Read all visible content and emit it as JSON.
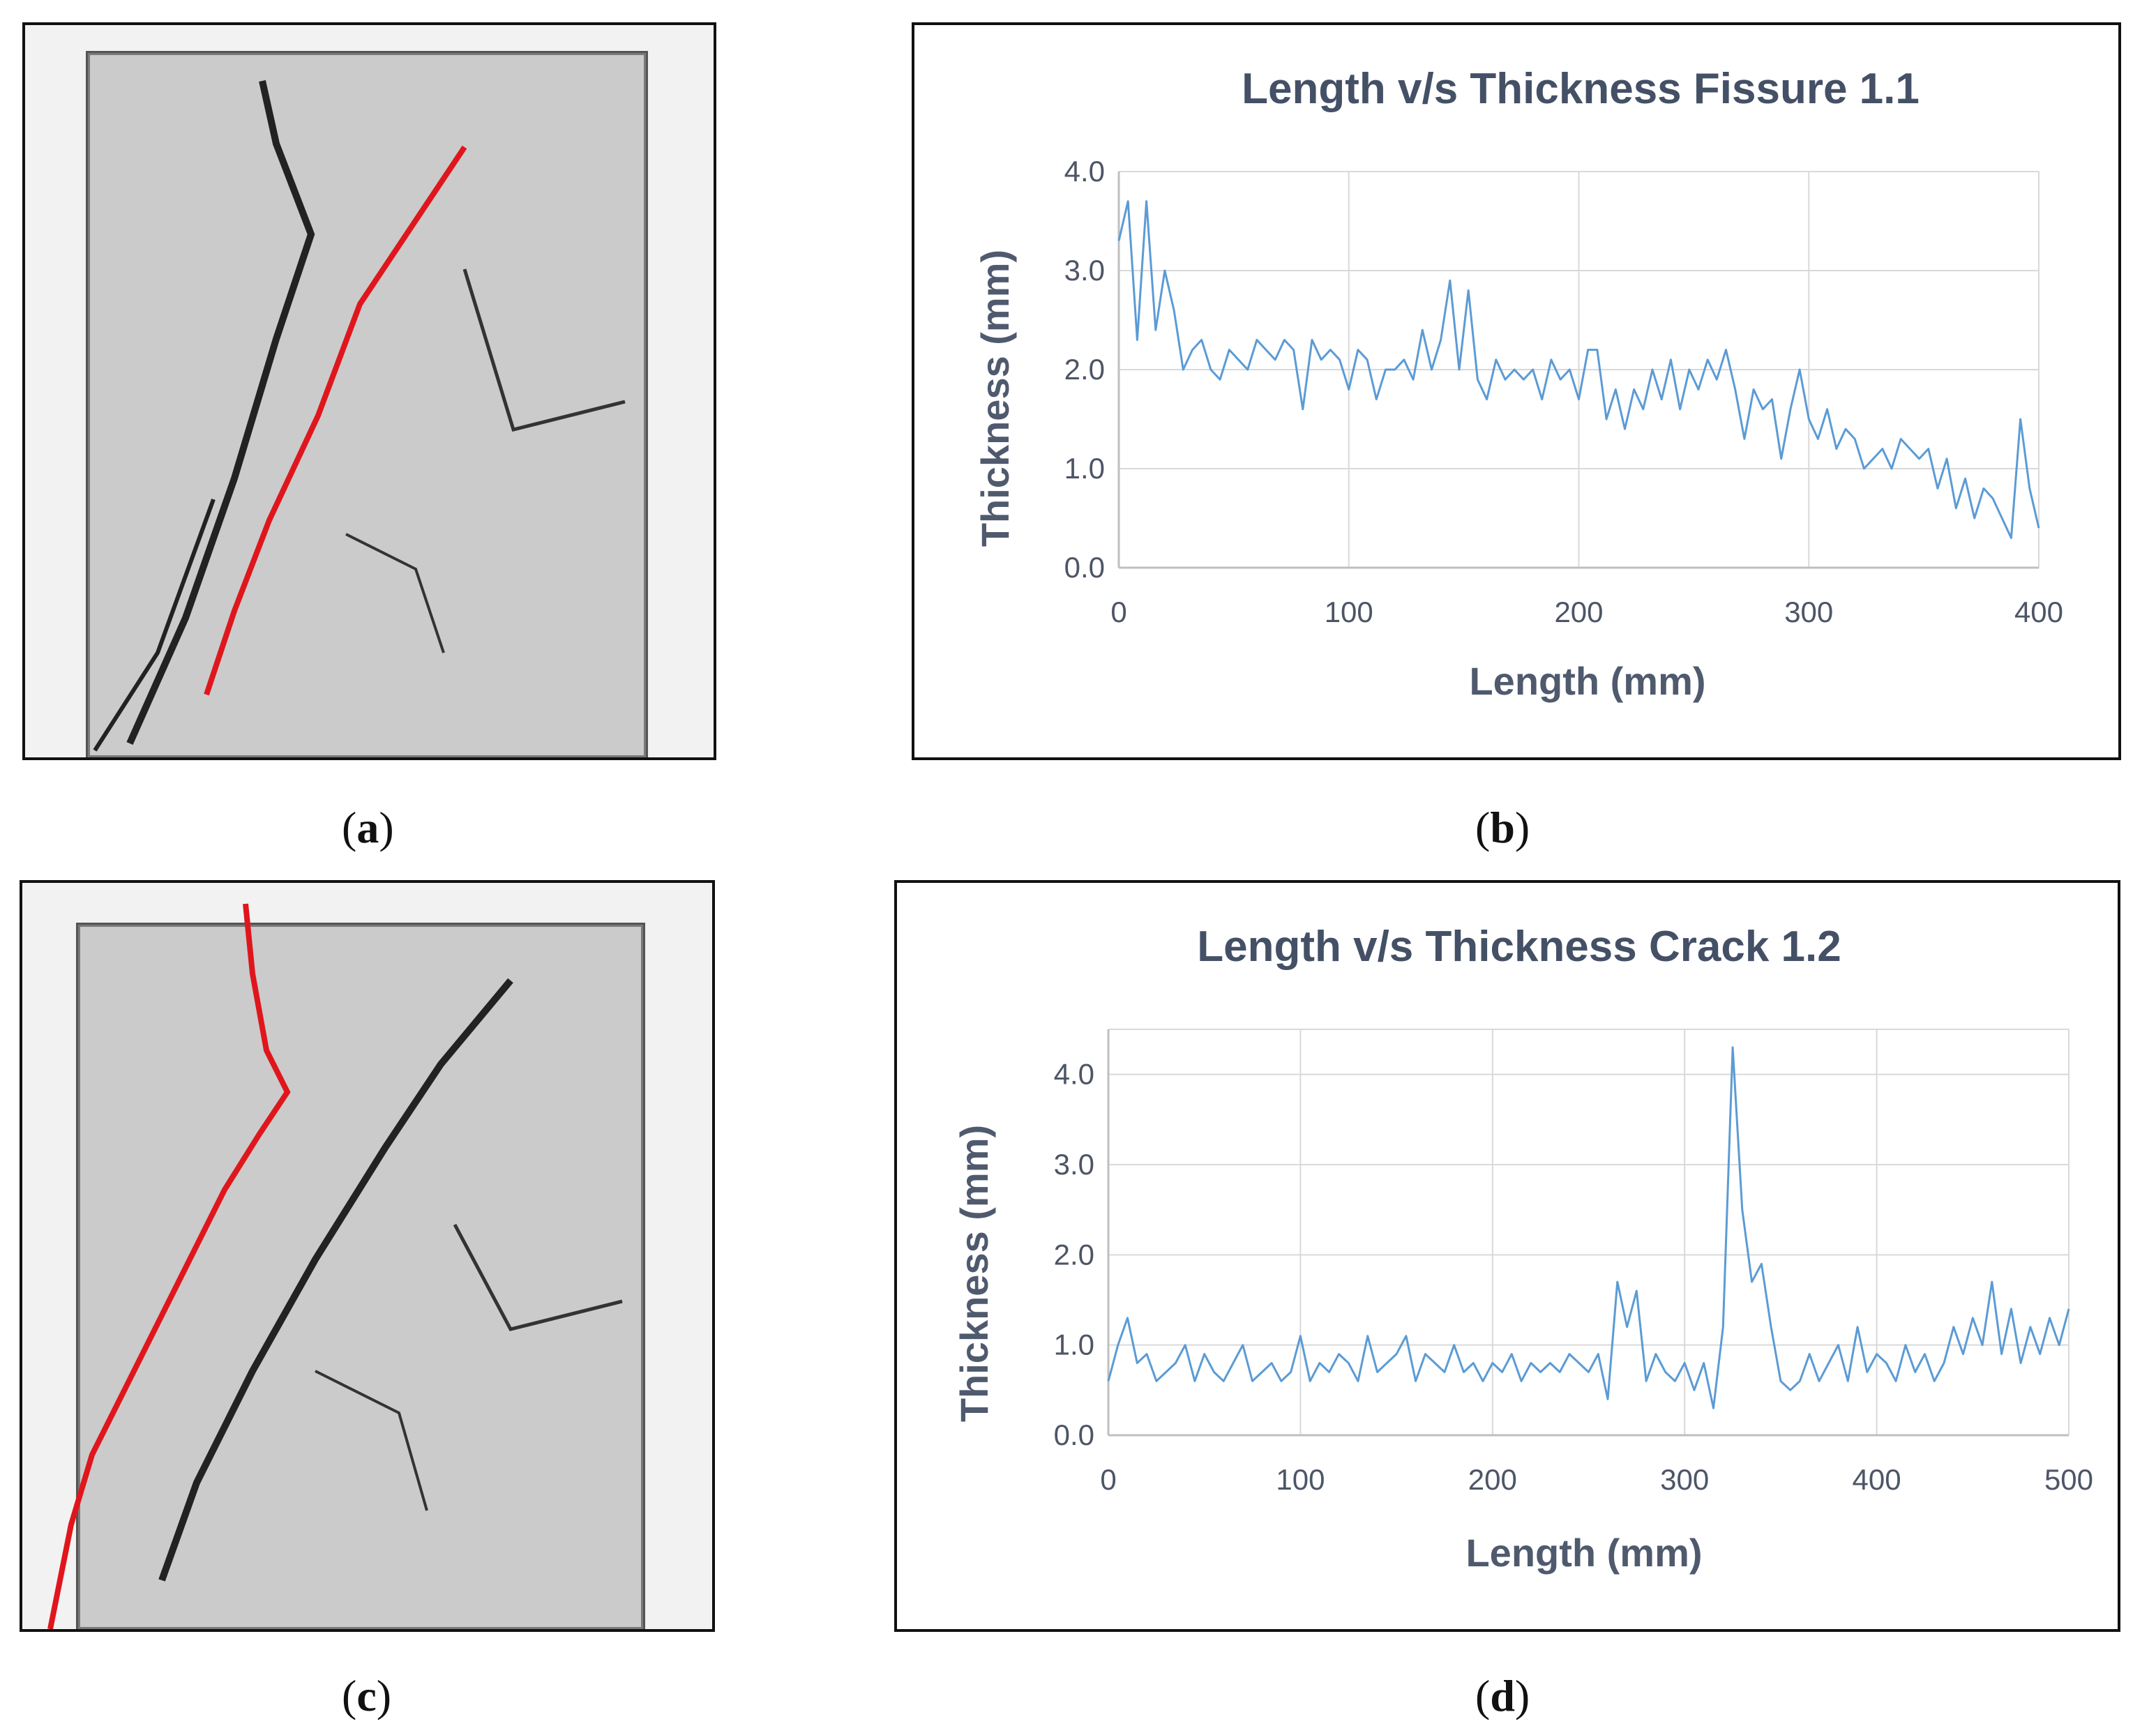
{
  "panels": {
    "a": {
      "caption": "a"
    },
    "b": {
      "caption": "b"
    },
    "c": {
      "caption": "c"
    },
    "d": {
      "caption": "d"
    }
  },
  "colors": {
    "line": "#5b9bd5",
    "grid": "#d9d9d9",
    "crack": "#e0161d"
  },
  "chart_data": [
    {
      "type": "line",
      "title": "Length v/s Thickness Fissure 1.1",
      "xlabel": "Length (mm)",
      "ylabel": "Thickness (mm)",
      "xlim": [
        0,
        400
      ],
      "ylim": [
        0,
        4
      ],
      "xticks": [
        0,
        100,
        200,
        300,
        400
      ],
      "yticks": [
        0,
        1,
        2,
        3,
        4
      ],
      "ytick_labels": [
        "0.0",
        "1.0",
        "2.0",
        "3.0",
        "4.0"
      ],
      "grid": true,
      "series": [
        {
          "name": "Fissure 1.1",
          "x": [
            0,
            4,
            8,
            12,
            16,
            20,
            24,
            28,
            32,
            36,
            40,
            44,
            48,
            52,
            56,
            60,
            64,
            68,
            72,
            76,
            80,
            84,
            88,
            92,
            96,
            100,
            104,
            108,
            112,
            116,
            120,
            124,
            128,
            132,
            136,
            140,
            144,
            148,
            152,
            156,
            160,
            164,
            168,
            172,
            176,
            180,
            184,
            188,
            192,
            196,
            200,
            204,
            208,
            212,
            216,
            220,
            224,
            228,
            232,
            236,
            240,
            244,
            248,
            252,
            256,
            260,
            264,
            268,
            272,
            276,
            280,
            284,
            288,
            292,
            296,
            300,
            304,
            308,
            312,
            316,
            320,
            324,
            328,
            332,
            336,
            340,
            344,
            348,
            352,
            356,
            360,
            364,
            368,
            372,
            376,
            380,
            384,
            388,
            392,
            396,
            400
          ],
          "values": [
            3.3,
            3.7,
            2.3,
            3.7,
            2.4,
            3.0,
            2.6,
            2.0,
            2.2,
            2.3,
            2.0,
            1.9,
            2.2,
            2.1,
            2.0,
            2.3,
            2.2,
            2.1,
            2.3,
            2.2,
            1.6,
            2.3,
            2.1,
            2.2,
            2.1,
            1.8,
            2.2,
            2.1,
            1.7,
            2.0,
            2.0,
            2.1,
            1.9,
            2.4,
            2.0,
            2.3,
            2.9,
            2.0,
            2.8,
            1.9,
            1.7,
            2.1,
            1.9,
            2.0,
            1.9,
            2.0,
            1.7,
            2.1,
            1.9,
            2.0,
            1.7,
            2.2,
            2.2,
            1.5,
            1.8,
            1.4,
            1.8,
            1.6,
            2.0,
            1.7,
            2.1,
            1.6,
            2.0,
            1.8,
            2.1,
            1.9,
            2.2,
            1.8,
            1.3,
            1.8,
            1.6,
            1.7,
            1.1,
            1.6,
            2.0,
            1.5,
            1.3,
            1.6,
            1.2,
            1.4,
            1.3,
            1.0,
            1.1,
            1.2,
            1.0,
            1.3,
            1.2,
            1.1,
            1.2,
            0.8,
            1.1,
            0.6,
            0.9,
            0.5,
            0.8,
            0.7,
            0.5,
            0.3,
            1.5,
            0.8,
            0.4
          ]
        }
      ]
    },
    {
      "type": "line",
      "title": "Length v/s Thickness Crack 1.2",
      "xlabel": "Length (mm)",
      "ylabel": "Thickness (mm)",
      "xlim": [
        0,
        500
      ],
      "ylim": [
        0,
        4.5
      ],
      "xticks": [
        0,
        100,
        200,
        300,
        400,
        500
      ],
      "yticks": [
        0,
        1,
        2,
        3,
        4
      ],
      "ytick_labels": [
        "0.0",
        "1.0",
        "2.0",
        "3.0",
        "4.0"
      ],
      "grid": true,
      "series": [
        {
          "name": "Crack 1.2",
          "x": [
            0,
            5,
            10,
            15,
            20,
            25,
            30,
            35,
            40,
            45,
            50,
            55,
            60,
            65,
            70,
            75,
            80,
            85,
            90,
            95,
            100,
            105,
            110,
            115,
            120,
            125,
            130,
            135,
            140,
            145,
            150,
            155,
            160,
            165,
            170,
            175,
            180,
            185,
            190,
            195,
            200,
            205,
            210,
            215,
            220,
            225,
            230,
            235,
            240,
            245,
            250,
            255,
            260,
            265,
            270,
            275,
            280,
            285,
            290,
            295,
            300,
            305,
            310,
            315,
            320,
            325,
            330,
            335,
            340,
            345,
            350,
            355,
            360,
            365,
            370,
            375,
            380,
            385,
            390,
            395,
            400,
            405,
            410,
            415,
            420,
            425,
            430,
            435,
            440,
            445,
            450,
            455,
            460,
            465,
            470,
            475,
            480,
            485,
            490,
            495,
            500
          ],
          "values": [
            0.6,
            1.0,
            1.3,
            0.8,
            0.9,
            0.6,
            0.7,
            0.8,
            1.0,
            0.6,
            0.9,
            0.7,
            0.6,
            0.8,
            1.0,
            0.6,
            0.7,
            0.8,
            0.6,
            0.7,
            1.1,
            0.6,
            0.8,
            0.7,
            0.9,
            0.8,
            0.6,
            1.1,
            0.7,
            0.8,
            0.9,
            1.1,
            0.6,
            0.9,
            0.8,
            0.7,
            1.0,
            0.7,
            0.8,
            0.6,
            0.8,
            0.7,
            0.9,
            0.6,
            0.8,
            0.7,
            0.8,
            0.7,
            0.9,
            0.8,
            0.7,
            0.9,
            0.4,
            1.7,
            1.2,
            1.6,
            0.6,
            0.9,
            0.7,
            0.6,
            0.8,
            0.5,
            0.8,
            0.3,
            1.2,
            4.3,
            2.5,
            1.7,
            1.9,
            1.2,
            0.6,
            0.5,
            0.6,
            0.9,
            0.6,
            0.8,
            1.0,
            0.6,
            1.2,
            0.7,
            0.9,
            0.8,
            0.6,
            1.0,
            0.7,
            0.9,
            0.6,
            0.8,
            1.2,
            0.9,
            1.3,
            1.0,
            1.7,
            0.9,
            1.4,
            0.8,
            1.2,
            0.9,
            1.3,
            1.0,
            1.4
          ]
        }
      ]
    }
  ]
}
